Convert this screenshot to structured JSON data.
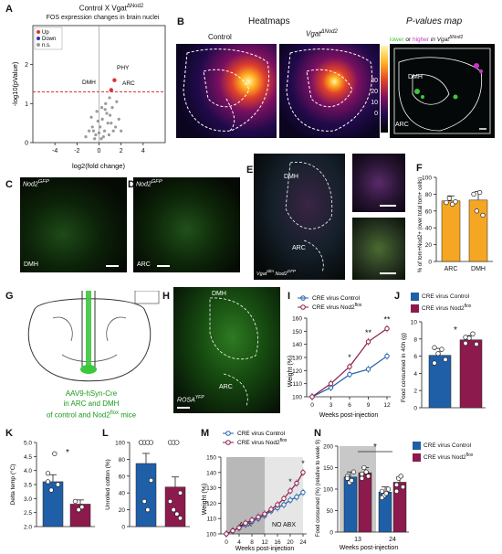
{
  "panels": {
    "A": {
      "label": "A",
      "title": "Control X Vgat",
      "title_sup": "ΔNod2",
      "subtitle": "FOS expression changes in brain nuclei",
      "legend": [
        "Up",
        "Down",
        "n.s."
      ],
      "xlabel": "log2(fold change)",
      "ylabel": "-log10(pValue)",
      "annotations": [
        "PHY",
        "DMH",
        "ARC"
      ],
      "xticks": [
        "-4",
        "-2",
        "0",
        "2",
        "4"
      ],
      "yticks": [
        "0",
        "1",
        "2"
      ]
    },
    "B": {
      "label": "B",
      "heatmaps_title": "Heatmaps",
      "pmap_title": "P-values map",
      "col_control": "Control",
      "col_vgat": "Vgat",
      "col_vgat_sup": "ΔNod2",
      "colorbar_ticks": [
        "30",
        "20",
        "10",
        "0"
      ],
      "pmap_legend_lower": "lower",
      "pmap_legend_or": " or ",
      "pmap_legend_higher": "higher",
      "pmap_legend_in": " in Vgat",
      "pmap_legend_sup": "ΔNod2",
      "dmh": "DMH",
      "arc": "ARC"
    },
    "C": {
      "label": "C",
      "marker": "Nod2",
      "marker_sup": "GFP",
      "region": "DMH"
    },
    "D": {
      "label": "D",
      "marker": "Nod2",
      "marker_sup": "GFP",
      "region": "ARC"
    },
    "E": {
      "label": "E",
      "dmh": "DMH",
      "arc": "ARC",
      "genotype": "Vgat",
      "genotype_sup": "tdm",
      "genotype2": "Nod2",
      "genotype2_sup": "GFP"
    },
    "F": {
      "label": "F",
      "ylabel": "% of tom+Nod2+ (over total tom+ cells)",
      "yticks": [
        "0",
        "20",
        "40",
        "60",
        "80",
        "100"
      ],
      "categories": [
        "ARC",
        "DMH"
      ]
    },
    "G": {
      "label": "G",
      "caption_line1": "AAV9-hSyn-Cre",
      "caption_line2": "in ARC and DMH",
      "caption_line3": "of control and Nod2",
      "caption_sup": "flox",
      "caption_end": " mice"
    },
    "H": {
      "label": "H",
      "dmh": "DMH",
      "arc": "ARC",
      "reporter": "ROSA",
      "reporter_sup": "YFP"
    },
    "I": {
      "label": "I",
      "legend_control": "CRE virus Control",
      "legend_nod2": "CRE virus Nod2",
      "legend_nod2_sup": "flox",
      "ylabel": "Weight (%)",
      "xlabel": "Weeks post-injection",
      "xticks": [
        "0",
        "3",
        "6",
        "9",
        "12"
      ],
      "yticks": [
        "100",
        "110",
        "120",
        "130",
        "140",
        "150",
        "160"
      ],
      "sig": [
        "*",
        "**",
        "**"
      ]
    },
    "J": {
      "label": "J",
      "legend_control": "CRE virus Control",
      "legend_nod2": "CRE virus Nod2",
      "legend_nod2_sup": "flox",
      "ylabel": "Food consumed in 40h (g)",
      "yticks": [
        "0",
        "2",
        "4",
        "6",
        "8",
        "10"
      ],
      "sig": "*"
    },
    "K": {
      "label": "K",
      "ylabel": "Delta temp (°C)",
      "yticks": [
        "2.0",
        "2.5",
        "3.0",
        "3.5",
        "4.0",
        "4.5",
        "5.0"
      ],
      "sig": "*"
    },
    "L": {
      "label": "L",
      "ylabel": "Unrolled cotton (%)",
      "yticks": [
        "0",
        "20",
        "40",
        "60",
        "80",
        "100"
      ]
    },
    "M": {
      "label": "M",
      "legend_control": "CRE virus Control",
      "legend_nod2": "CRE virus Nod2",
      "legend_nod2_sup": "flox",
      "ylabel": "Weight (%)",
      "xlabel": "Weeks post-injection",
      "xticks": [
        "0",
        "4",
        "8",
        "12",
        "16",
        "20",
        "24"
      ],
      "yticks": [
        "100",
        "110",
        "120",
        "130",
        "140",
        "150"
      ],
      "abx": "ABX",
      "no_abx": "NO ABX",
      "sig": [
        "*",
        "*"
      ]
    },
    "N": {
      "label": "N",
      "legend_control": "CRE virus Control",
      "legend_nod2": "CRE virus Nod2",
      "legend_nod2_sup": "flox",
      "ylabel": "Food consumed (%) (relative to week 9)",
      "xlabel": "Weeks post-injection",
      "xticks": [
        "13",
        "24"
      ],
      "yticks": [
        "0",
        "50",
        "100",
        "150",
        "200"
      ],
      "sig": "*"
    }
  },
  "colors": {
    "control": "#1f5fa8",
    "nod2": "#8c1a4c",
    "orange": "#f5a623",
    "green": "#3cc73c",
    "magenta": "#cc33cc",
    "up": "#d33",
    "down": "#33a"
  },
  "chart_data": [
    {
      "panel": "A",
      "type": "scatter",
      "title": "FOS expression changes in brain nuclei",
      "xlabel": "log2(fold change)",
      "ylabel": "-log10(pValue)",
      "xlim": [
        -6,
        6
      ],
      "ylim": [
        0,
        3
      ],
      "threshold_y": 1.3,
      "highlighted": [
        {
          "name": "PHY",
          "x": 1.4,
          "y": 1.6,
          "class": "Up"
        },
        {
          "name": "ARC",
          "x": 1.1,
          "y": 1.35,
          "class": "Up"
        }
      ],
      "ns_points": [
        [
          0.2,
          0.1
        ],
        [
          0.5,
          0.3
        ],
        [
          -0.3,
          0.2
        ],
        [
          0.8,
          0.5
        ],
        [
          1.0,
          0.7
        ],
        [
          -0.6,
          0.4
        ],
        [
          0.3,
          0.6
        ],
        [
          1.2,
          0.9
        ],
        [
          0.6,
          1.0
        ],
        [
          -0.2,
          0.8
        ],
        [
          1.5,
          0.4
        ],
        [
          0.9,
          0.2
        ],
        [
          -0.9,
          0.3
        ],
        [
          0.1,
          0.4
        ],
        [
          0.4,
          0.15
        ],
        [
          1.8,
          0.6
        ],
        [
          -0.4,
          0.1
        ],
        [
          0.7,
          0.75
        ],
        [
          1.3,
          0.3
        ],
        [
          -0.1,
          0.55
        ],
        [
          2.0,
          0.3
        ],
        [
          0.0,
          0.25
        ],
        [
          -1.2,
          0.15
        ],
        [
          0.95,
          1.15
        ],
        [
          0.55,
          0.85
        ],
        [
          1.6,
          1.05
        ],
        [
          -0.7,
          0.65
        ],
        [
          0.25,
          0.9
        ],
        [
          1.1,
          0.5
        ],
        [
          -0.5,
          0.3
        ]
      ]
    },
    {
      "panel": "F",
      "type": "bar",
      "categories": [
        "ARC",
        "DMH"
      ],
      "values": [
        72,
        73
      ],
      "errors": [
        6,
        10
      ],
      "ylim": [
        0,
        100
      ],
      "points": [
        [
          70,
          75,
          68,
          71
        ],
        [
          80,
          60,
          82,
          55
        ]
      ]
    },
    {
      "panel": "I",
      "type": "line",
      "x": [
        0,
        3,
        6,
        9,
        12
      ],
      "xlabel": "Weeks post-injection",
      "ylabel": "Weight (%)",
      "ylim": [
        100,
        160
      ],
      "series": [
        {
          "name": "CRE virus Control",
          "values": [
            100,
            107,
            117,
            121,
            131
          ]
        },
        {
          "name": "CRE virus Nod2flox",
          "values": [
            100,
            110,
            123,
            142,
            152
          ]
        }
      ]
    },
    {
      "panel": "J",
      "type": "bar",
      "categories": [
        "CRE virus Control",
        "CRE virus Nod2flox"
      ],
      "values": [
        6.1,
        7.9
      ],
      "ylim": [
        0,
        10
      ],
      "points": [
        [
          5.2,
          6.3,
          6.8,
          5.6,
          7.0
        ],
        [
          7.5,
          8.1,
          8.6,
          7.4,
          8.2
        ]
      ]
    },
    {
      "panel": "K",
      "type": "bar",
      "categories": [
        "CRE virus Control",
        "CRE virus Nod2flox"
      ],
      "values": [
        3.6,
        2.8
      ],
      "ylim": [
        2.0,
        5.0
      ],
      "points": [
        [
          3.9,
          3.3,
          4.6,
          3.5,
          3.6
        ],
        [
          2.9,
          2.6,
          2.7
        ]
      ]
    },
    {
      "panel": "L",
      "type": "bar",
      "categories": [
        "CRE virus Control",
        "CRE virus Nod2flox"
      ],
      "values": [
        75,
        47
      ],
      "ylim": [
        0,
        100
      ],
      "points": [
        [
          100,
          100,
          100,
          100,
          100,
          30,
          20,
          55
        ],
        [
          100,
          100,
          100,
          40,
          30,
          20,
          15,
          10
        ]
      ]
    },
    {
      "panel": "M",
      "type": "line",
      "x": [
        0,
        2,
        4,
        6,
        8,
        10,
        12,
        14,
        16,
        18,
        20,
        22,
        24
      ],
      "xlabel": "Weeks post-injection",
      "ylabel": "Weight (%)",
      "ylim": [
        100,
        150
      ],
      "series": [
        {
          "name": "CRE virus Control",
          "values": [
            100,
            102,
            104,
            106,
            108,
            110,
            112,
            115,
            117,
            119,
            122,
            124,
            127
          ]
        },
        {
          "name": "CRE virus Nod2flox",
          "values": [
            100,
            102,
            104,
            107,
            109,
            111,
            113,
            116,
            119,
            123,
            128,
            133,
            140
          ]
        }
      ]
    },
    {
      "panel": "N",
      "type": "bar",
      "categories": [
        "13",
        "24"
      ],
      "xlabel": "Weeks post-injection",
      "ylim": [
        0,
        200
      ],
      "series": [
        {
          "name": "CRE virus Control",
          "values": [
            128,
            93
          ]
        },
        {
          "name": "CRE virus Nod2flox",
          "values": [
            138,
            116
          ]
        }
      ]
    }
  ]
}
